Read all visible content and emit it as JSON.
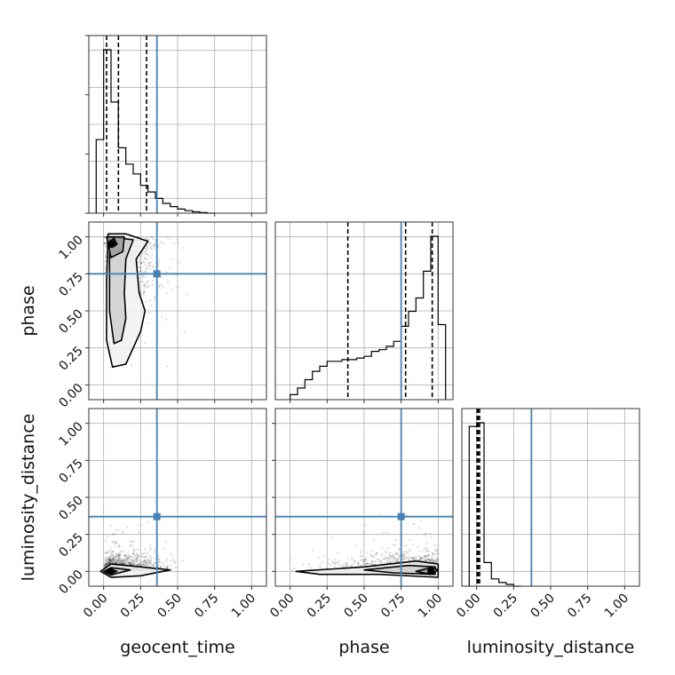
{
  "chart_data": {
    "type": "corner",
    "parameters": [
      "geocent_time",
      "phase",
      "luminosity_distance"
    ],
    "tick_values": [
      0.0,
      0.25,
      0.5,
      0.75,
      1.0
    ],
    "tick_labels": [
      "0.00",
      "0.25",
      "0.50",
      "0.75",
      "1.00"
    ],
    "axis_range": [
      -0.1,
      1.1
    ],
    "grid": true,
    "truth_color": "#4682b4",
    "truth_values": {
      "geocent_time": 0.36,
      "phase": 0.75,
      "luminosity_distance": 0.37
    },
    "quantile_markers": {
      "geocent_time": [
        0.02,
        0.1,
        0.29
      ],
      "phase": [
        0.39,
        0.78,
        0.96
      ],
      "luminosity_distance": [
        0.003,
        0.01,
        0.02
      ]
    },
    "histograms": {
      "geocent_time": {
        "bin_edges": [
          -0.05,
          0.0,
          0.05,
          0.1,
          0.15,
          0.2,
          0.25,
          0.3,
          0.35,
          0.4,
          0.45,
          0.5,
          0.55,
          0.6,
          0.65,
          0.7,
          0.75
        ],
        "counts": [
          0.45,
          1.0,
          0.68,
          0.4,
          0.3,
          0.24,
          0.17,
          0.13,
          0.09,
          0.06,
          0.04,
          0.025,
          0.015,
          0.008,
          0.004,
          0.0
        ]
      },
      "phase": {
        "bin_edges": [
          0.0,
          0.05,
          0.1,
          0.15,
          0.2,
          0.25,
          0.3,
          0.35,
          0.4,
          0.45,
          0.5,
          0.55,
          0.6,
          0.65,
          0.7,
          0.75,
          0.8,
          0.85,
          0.9,
          0.95,
          1.0,
          1.05
        ],
        "counts": [
          0.03,
          0.07,
          0.12,
          0.17,
          0.2,
          0.23,
          0.23,
          0.24,
          0.24,
          0.25,
          0.26,
          0.29,
          0.3,
          0.32,
          0.35,
          0.44,
          0.53,
          0.61,
          0.77,
          0.98,
          0.45
        ]
      },
      "luminosity_distance": {
        "bin_edges": [
          -0.05,
          0.0,
          0.05,
          0.1,
          0.15,
          0.2,
          0.25,
          0.3
        ],
        "counts": [
          0.88,
          0.9,
          0.13,
          0.04,
          0.02,
          0.01,
          0.0
        ]
      }
    },
    "posterior_modes": {
      "geocent_time_vs_phase": [
        0.05,
        0.95
      ],
      "geocent_time_vs_luminosity_distance": [
        0.05,
        0.0
      ],
      "phase_vs_luminosity_distance": [
        0.95,
        0.0
      ]
    }
  }
}
